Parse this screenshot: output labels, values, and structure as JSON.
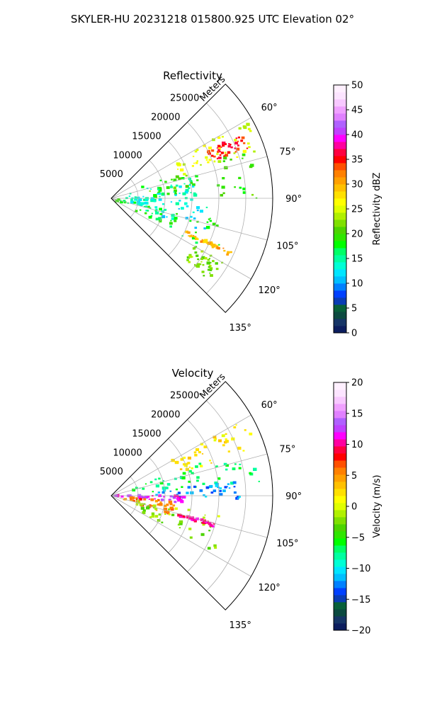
{
  "figure": {
    "suptitle": "SKYLER-HU  20231218  015800.925 UTC Elevation 02°"
  },
  "chart_data": [
    {
      "type": "heatmap",
      "projection": "polar-sector",
      "title": "Reflectivity",
      "radial_label": "Meters",
      "radial_ticks": [
        5000,
        10000,
        15000,
        20000,
        25000
      ],
      "radial_tick_labels": [
        "5000",
        "10000",
        "15000",
        "20000",
        "25000"
      ],
      "rlim": [
        0,
        30000
      ],
      "theta_ticks": [
        60,
        75,
        90,
        105,
        120,
        135
      ],
      "theta_tick_labels": [
        "60°",
        "75°",
        "90°",
        "105°",
        "120°",
        "135°"
      ],
      "thetalim": [
        45,
        135
      ],
      "grid": true,
      "colorbar": {
        "label": "Reflectivity dBZ",
        "vmin": 0,
        "vmax": 50,
        "ticks": [
          0,
          5,
          10,
          15,
          20,
          25,
          30,
          35,
          40,
          45,
          50
        ],
        "tick_labels": [
          "0",
          "5",
          "10",
          "15",
          "20",
          "25",
          "30",
          "35",
          "40",
          "45",
          "50"
        ],
        "colors": [
          "#0c1d5e",
          "#163566",
          "#0c4a40",
          "#08603a",
          "#0a3cb4",
          "#0040ff",
          "#0080ff",
          "#00bfff",
          "#00e5ff",
          "#00ffd5",
          "#00ffa0",
          "#00ff66",
          "#00ff00",
          "#2fe600",
          "#4cd400",
          "#7fe000",
          "#b0f000",
          "#e0ff00",
          "#ffff00",
          "#ffe000",
          "#ffc000",
          "#ffa000",
          "#ff8000",
          "#ff5000",
          "#ff0000",
          "#ff0040",
          "#ff00a0",
          "#ff00ff",
          "#c040ff",
          "#b060ff",
          "#e080ff",
          "#f0a0ff",
          "#f8c8ff",
          "#fce4ff",
          "#fff0ff"
        ]
      },
      "field_regions": [
        {
          "theta_range": [
            60,
            72
          ],
          "r_range": [
            13000,
            29000
          ],
          "value": 25
        },
        {
          "theta_range": [
            64,
            70
          ],
          "r_range": [
            20000,
            27000
          ],
          "value": 35
        },
        {
          "theta_range": [
            70,
            90
          ],
          "r_range": [
            6000,
            27000
          ],
          "value": 20
        },
        {
          "theta_range": [
            75,
            95
          ],
          "r_range": [
            2000,
            16000
          ],
          "value": 14
        },
        {
          "theta_range": [
            90,
            110
          ],
          "r_range": [
            3000,
            20000
          ],
          "value": 13
        },
        {
          "theta_range": [
            100,
            118
          ],
          "r_range": [
            1000,
            22000
          ],
          "value": 18
        },
        {
          "theta_range": [
            114,
            116
          ],
          "r_range": [
            15000,
            25000
          ],
          "value": 30
        },
        {
          "theta_range": [
            120,
            130
          ],
          "r_range": [
            18000,
            24000
          ],
          "value": 22
        }
      ]
    },
    {
      "type": "heatmap",
      "projection": "polar-sector",
      "title": "Velocity",
      "radial_label": "Meters",
      "radial_ticks": [
        5000,
        10000,
        15000,
        20000,
        25000
      ],
      "radial_tick_labels": [
        "5000",
        "10000",
        "15000",
        "20000",
        "25000"
      ],
      "rlim": [
        0,
        30000
      ],
      "theta_ticks": [
        60,
        75,
        90,
        105,
        120,
        135
      ],
      "theta_tick_labels": [
        "60°",
        "75°",
        "90°",
        "105°",
        "120°",
        "135°"
      ],
      "thetalim": [
        45,
        135
      ],
      "grid": true,
      "colorbar": {
        "label": "Velocity (m/s)",
        "vmin": -20,
        "vmax": 20,
        "ticks": [
          -20,
          -15,
          -10,
          -5,
          0,
          5,
          10,
          15,
          20
        ],
        "tick_labels": [
          "−20",
          "−15",
          "−10",
          "−5",
          "0",
          "5",
          "10",
          "15",
          "20"
        ],
        "colors": [
          "#0c1d5e",
          "#163566",
          "#0c4a40",
          "#08603a",
          "#0a3cb4",
          "#0040ff",
          "#0080ff",
          "#00bfff",
          "#00e5ff",
          "#00ffd5",
          "#00ffa0",
          "#00ff66",
          "#00ff00",
          "#2fe600",
          "#4cd400",
          "#7fe000",
          "#b0f000",
          "#e0ff00",
          "#ffff00",
          "#ffe000",
          "#ffc000",
          "#ffa000",
          "#ff8000",
          "#ff5000",
          "#ff0000",
          "#ff0040",
          "#ff00a0",
          "#ff00ff",
          "#c040ff",
          "#b060ff",
          "#e080ff",
          "#f0a0ff",
          "#f8c8ff",
          "#fce4ff",
          "#fff0ff"
        ]
      },
      "field_regions": [
        {
          "theta_range": [
            60,
            72
          ],
          "r_range": [
            13000,
            29000
          ],
          "value": 2
        },
        {
          "theta_range": [
            70,
            85
          ],
          "r_range": [
            4000,
            28000
          ],
          "value": -7
        },
        {
          "theta_range": [
            84,
            92
          ],
          "r_range": [
            6000,
            24000
          ],
          "value": -12
        },
        {
          "theta_range": [
            90,
            96
          ],
          "r_range": [
            0,
            14000
          ],
          "value": 12
        },
        {
          "theta_range": [
            95,
            108
          ],
          "r_range": [
            2000,
            12000
          ],
          "value": 6
        },
        {
          "theta_range": [
            100,
            120
          ],
          "r_range": [
            4000,
            22000
          ],
          "value": -2
        },
        {
          "theta_range": [
            105,
            107
          ],
          "r_range": [
            13000,
            20000
          ],
          "value": 10
        }
      ]
    }
  ]
}
